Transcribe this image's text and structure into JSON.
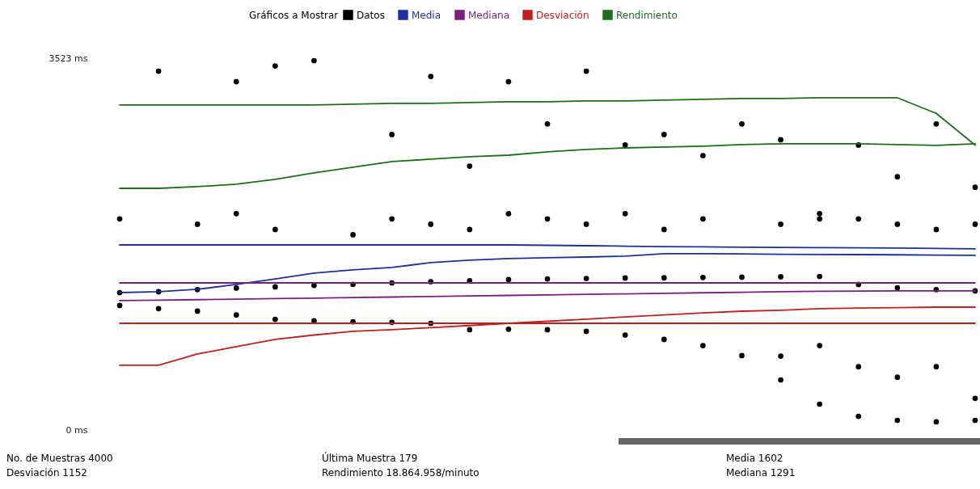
{
  "chart_data": {
    "type": "line",
    "legend_title": "Gráficos a Mostrar",
    "categories": [
      null,
      null,
      null,
      null,
      null,
      null,
      null,
      null,
      null,
      null,
      null,
      null,
      null,
      null,
      null,
      null,
      null,
      null,
      null,
      null,
      null,
      null,
      null
    ],
    "ylim": [
      0,
      3523
    ],
    "yticks": [
      {
        "value": 0,
        "label": "0 ms"
      },
      {
        "value": 3523,
        "label": "3523 ms"
      }
    ],
    "tick_labels": "y",
    "grid": false,
    "legend": "top",
    "series": [
      {
        "name": "Datos",
        "type": "scatter",
        "color": "#000000",
        "values": [
          1180,
          1150,
          1126,
          1090,
          1049,
          1035,
          1026,
          1020,
          1011,
          950,
          955,
          950,
          935,
          900,
          858,
          800,
          705,
          475,
          245,
          130,
          92,
          77,
          92
        ]
      },
      {
        "type": "scatter",
        "color": "#000000",
        "values": [
          1302,
          1310,
          1330,
          1345,
          1356,
          1370,
          1380,
          1394,
          1405,
          1415,
          1425,
          1432,
          1436,
          1440,
          1442,
          1445,
          1448,
          1452,
          1455,
          1379,
          1348,
          1330,
          1318
        ]
      },
      {
        "type": "scatter",
        "color": "#000000",
        "values": [
          null,
          3400,
          null,
          3300,
          3450,
          3500,
          null,
          2800,
          3350,
          2500,
          3300,
          2900,
          3400,
          2700,
          2800,
          2600,
          2900,
          2750,
          2000,
          2700,
          2400,
          2900,
          2300
        ]
      },
      {
        "type": "scatter",
        "color": "#000000",
        "values": [
          2000,
          null,
          1950,
          2050,
          1900,
          null,
          1850,
          2000,
          1950,
          1900,
          2050,
          2000,
          1950,
          2050,
          1900,
          2000,
          null,
          1950,
          2050,
          2000,
          1950,
          1900,
          1950
        ]
      },
      {
        "type": "scatter",
        "color": "#000000",
        "values": [
          null,
          null,
          null,
          null,
          null,
          null,
          null,
          null,
          null,
          null,
          null,
          null,
          null,
          null,
          null,
          null,
          null,
          700,
          800,
          600,
          500,
          600,
          300
        ]
      },
      {
        "name": "Media",
        "color": "#1f2f9f",
        "values": [
          1754,
          1754,
          1754,
          1754,
          1754,
          1754,
          1754,
          1754,
          1754,
          1754,
          1754,
          1750,
          1746,
          1742,
          1738,
          1735,
          1732,
          1730,
          1728,
          1726,
          1724,
          1720,
          1716
        ]
      },
      {
        "color": "#1f2f9f",
        "values": [
          1302,
          1310,
          1333,
          1379,
          1432,
          1486,
          1517,
          1540,
          1586,
          1609,
          1624,
          1632,
          1639,
          1647,
          1670,
          1670,
          1668,
          1665,
          1663,
          1662,
          1660,
          1657,
          1655
        ]
      },
      {
        "name": "Mediana",
        "color": "#7b1f7f",
        "values": [
          1394,
          1394,
          1394,
          1394,
          1394,
          1394,
          1394,
          1394,
          1394,
          1394,
          1394,
          1394,
          1394,
          1394,
          1394,
          1394,
          1394,
          1394,
          1394,
          1394,
          1394,
          1394,
          1394
        ]
      },
      {
        "color": "#7b1f7f",
        "values": [
          1226,
          1230,
          1235,
          1240,
          1245,
          1250,
          1255,
          1260,
          1265,
          1270,
          1275,
          1280,
          1285,
          1290,
          1295,
          1300,
          1305,
          1310,
          1314,
          1316,
          1318,
          1318,
          1318
        ]
      },
      {
        "name": "Desviación",
        "color": "#c0201f",
        "values": [
          1011,
          1011,
          1011,
          1011,
          1011,
          1011,
          1011,
          1011,
          1011,
          1011,
          1011,
          1011,
          1011,
          1011,
          1011,
          1011,
          1011,
          1011,
          1011,
          1011,
          1011,
          1011,
          1011
        ]
      },
      {
        "color": "#c0201f",
        "values": [
          613,
          613,
          720,
          790,
          858,
          900,
          935,
          950,
          970,
          990,
          1011,
          1030,
          1050,
          1072,
          1090,
          1110,
          1126,
          1135,
          1149,
          1155,
          1160,
          1164,
          1164
        ]
      },
      {
        "name": "Rendimiento",
        "color": "#1e6e1e",
        "values": [
          3079,
          3079,
          3079,
          3079,
          3079,
          3079,
          3087,
          3095,
          3095,
          3103,
          3110,
          3110,
          3118,
          3118,
          3125,
          3133,
          3141,
          3141,
          3148,
          3148,
          3148,
          3000,
          2700
        ]
      },
      {
        "color": "#1e6e1e",
        "values": [
          2290,
          2290,
          2306,
          2329,
          2375,
          2436,
          2490,
          2543,
          2566,
          2589,
          2604,
          2635,
          2658,
          2673,
          2681,
          2689,
          2704,
          2712,
          2712,
          2712,
          2704,
          2697,
          2712
        ]
      }
    ],
    "annotations": [
      "No. de Muestras 4000",
      "Desviación 1152",
      "Última Muestra 179",
      "Rendimiento 18.864.958/minuto",
      "Media 1602",
      "Mediana 1291"
    ]
  }
}
